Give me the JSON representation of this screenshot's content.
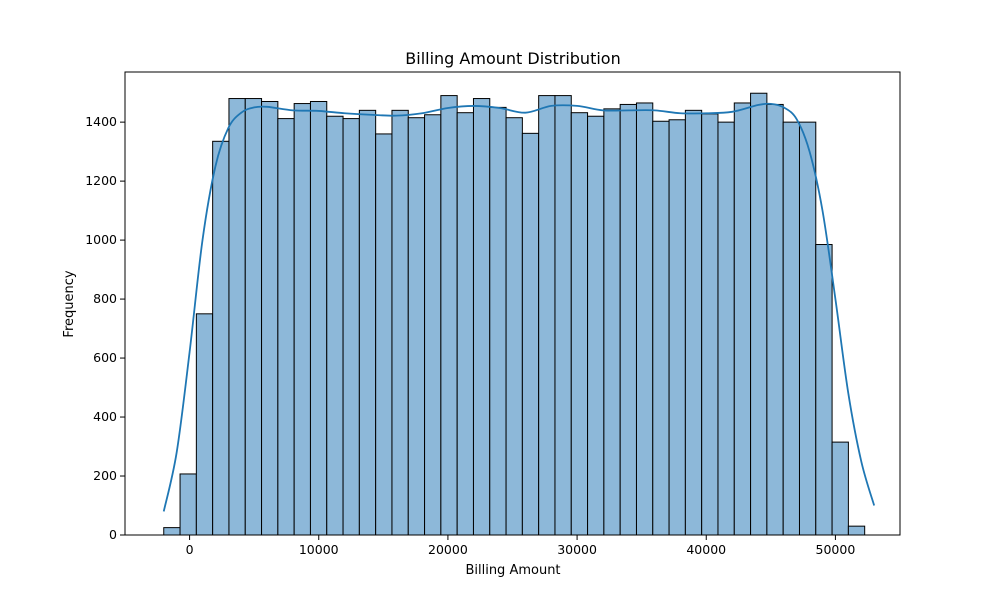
{
  "chart_data": {
    "type": "bar",
    "subtype": "histogram-with-kde",
    "title": "Billing Amount Distribution",
    "xlabel": "Billing Amount",
    "ylabel": "Frequency",
    "xlim": [
      -5000,
      55000
    ],
    "ylim": [
      0,
      1570
    ],
    "xticks": [
      0,
      10000,
      20000,
      30000,
      40000,
      50000
    ],
    "yticks": [
      0,
      200,
      400,
      600,
      800,
      1000,
      1200,
      1400
    ],
    "bin_start": -2000,
    "bin_width": 1262,
    "counts": [
      25,
      207,
      750,
      1335,
      1480,
      1480,
      1470,
      1412,
      1463,
      1470,
      1420,
      1412,
      1440,
      1360,
      1440,
      1415,
      1425,
      1490,
      1432,
      1480,
      1450,
      1415,
      1362,
      1490,
      1490,
      1432,
      1420,
      1445,
      1460,
      1465,
      1403,
      1408,
      1440,
      1428,
      1400,
      1465,
      1498,
      1460,
      1400,
      1400,
      985,
      315,
      30
    ],
    "kde": {
      "x": [
        -2000,
        -1000,
        0,
        1000,
        2000,
        3000,
        4000,
        5000,
        6000,
        8000,
        10000,
        12000,
        14000,
        16000,
        18000,
        20000,
        22000,
        24000,
        26000,
        28000,
        30000,
        32000,
        34000,
        36000,
        38000,
        40000,
        42000,
        44000,
        45000,
        46000,
        47000,
        48000,
        49000,
        50000,
        51000,
        52000,
        53000
      ],
      "y": [
        80,
        280,
        620,
        1000,
        1250,
        1380,
        1432,
        1450,
        1452,
        1440,
        1438,
        1430,
        1425,
        1422,
        1430,
        1448,
        1455,
        1448,
        1432,
        1455,
        1455,
        1440,
        1440,
        1440,
        1430,
        1430,
        1435,
        1458,
        1462,
        1450,
        1410,
        1300,
        1100,
        800,
        480,
        250,
        100
      ]
    },
    "colors": {
      "bar": "#8db8d9",
      "line": "#1f77b4"
    }
  }
}
